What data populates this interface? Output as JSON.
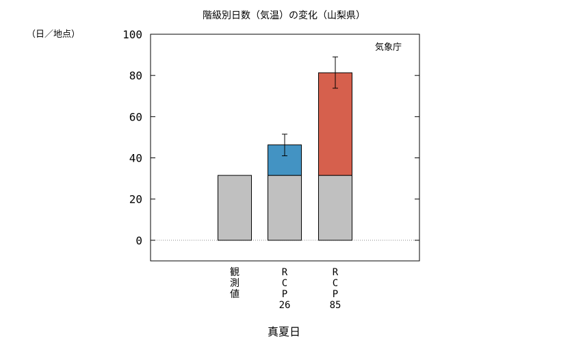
{
  "chart_data": {
    "type": "bar",
    "title": "階級別日数（気温）の変化（山梨県）",
    "unit_label": "（日／地点）",
    "source": "気象庁",
    "xlabel": "真夏日",
    "ylabel": "",
    "ylim": [
      -10,
      100
    ],
    "yticks": [
      0,
      20,
      40,
      60,
      80,
      100
    ],
    "grid": false,
    "categories": [
      [
        "観",
        "測",
        "値"
      ],
      [
        "R",
        "C",
        "P",
        "26"
      ],
      [
        "R",
        "C",
        "P",
        "85"
      ]
    ],
    "series": [
      {
        "name": "",
        "color": "#c0c0c0",
        "values": [
          31.5,
          31.5,
          31.5
        ]
      },
      {
        "name": "",
        "color": "#4393c3",
        "values": [
          0,
          14.8,
          0
        ]
      },
      {
        "name": "",
        "color": "#d6604d",
        "values": [
          0,
          0,
          49.8
        ]
      }
    ],
    "totals": [
      31.5,
      46.3,
      81.3
    ],
    "error_bars": [
      null,
      [
        41.0,
        51.5
      ],
      [
        73.8,
        89.0
      ]
    ]
  }
}
